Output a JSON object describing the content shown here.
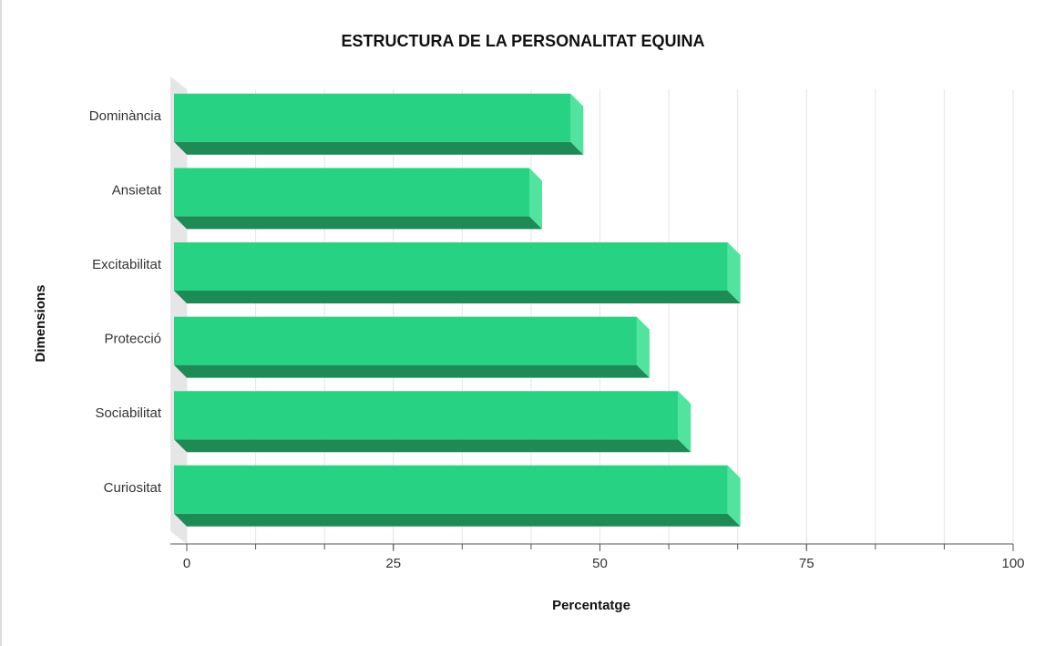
{
  "chart_data": {
    "type": "bar",
    "title": "ESTRUCTURA DE LA PERSONALITAT EQUINA",
    "x_label": "Percentatge",
    "y_label": "Dimensions",
    "categories": [
      "Dominància",
      "Ansietat",
      "Excitabilitat",
      "Protecció",
      "Sociabilitat",
      "Curiositat"
    ],
    "values": [
      48,
      43,
      67,
      56,
      61,
      67
    ],
    "color": "#27d283",
    "ylim": [
      0,
      100
    ],
    "yticks": [
      0,
      25,
      50,
      75,
      100
    ],
    "grid": true
  }
}
